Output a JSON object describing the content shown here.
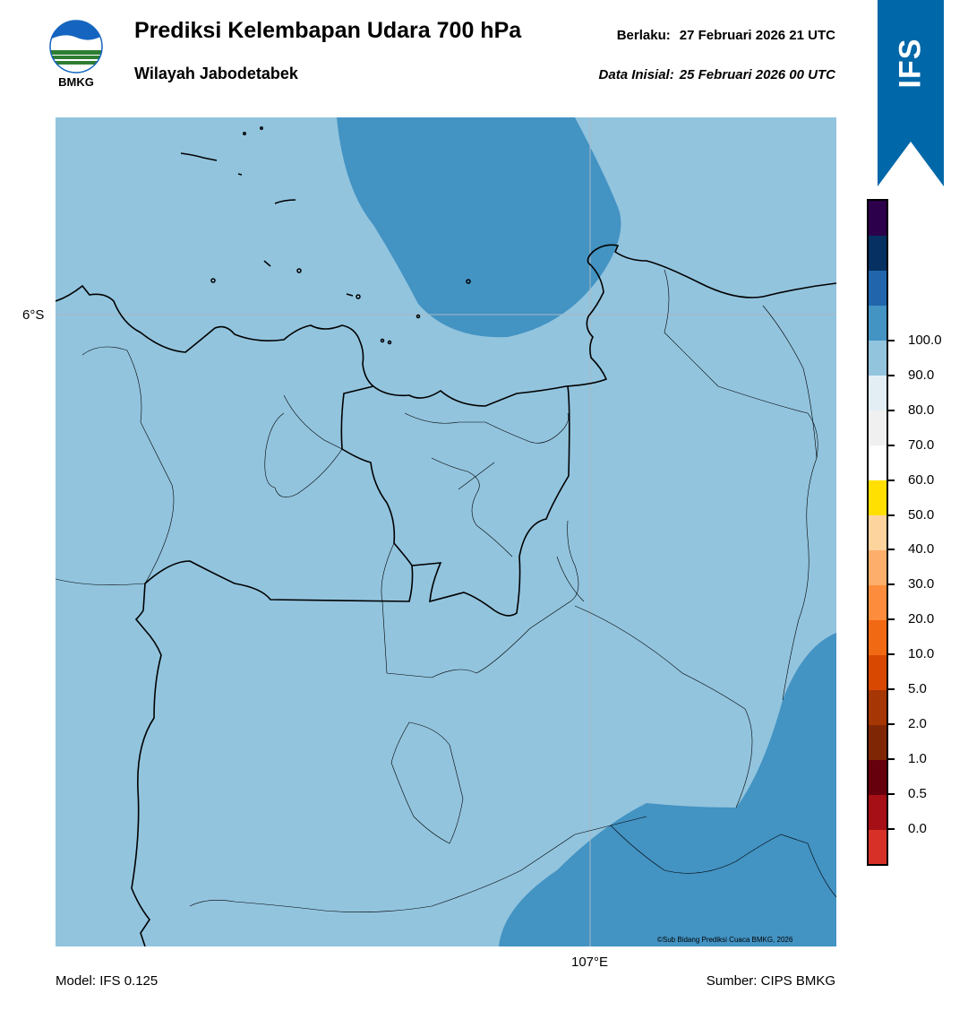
{
  "header": {
    "title": "Prediksi Kelembapan Udara 700 hPa",
    "subtitle": "Wilayah Jabodetabek",
    "valid_label": "Berlaku:",
    "valid_value": "27 Februari 2026 21 UTC",
    "init_label": "Data Inisial:",
    "init_value": "25 Februari 2026 00 UTC"
  },
  "logo": {
    "text": "BMKG",
    "icon": "bmkg-logo-icon"
  },
  "ribbon": {
    "text": "IFS",
    "color": "#0067a8"
  },
  "map": {
    "lat_label": "6°S",
    "lon_label": "107°E",
    "copyright": "©Sub Bidang Prediksi Cuaca BMKG, 2026",
    "base_fill_color": "#92c4de",
    "high_fill_color": "#4393c3"
  },
  "colorbar": {
    "segments": [
      "#d73027",
      "#a50f15",
      "#67000d",
      "#7f2704",
      "#a63603",
      "#d94801",
      "#f16913",
      "#fd8d3c",
      "#fdae6b",
      "#fdd49e",
      "#ffe000",
      "#ffffff",
      "#f0f0f0",
      "#e3eef4",
      "#92c4de",
      "#4393c3",
      "#2166ac",
      "#053061",
      "#2d004b"
    ],
    "labels": [
      "0.0",
      "0.5",
      "1.0",
      "2.0",
      "5.0",
      "10.0",
      "20.0",
      "30.0",
      "40.0",
      "50.0",
      "60.0",
      "70.0",
      "80.0",
      "90.0",
      "100.0"
    ]
  },
  "footer": {
    "model": "Model: IFS 0.125",
    "source": "Sumber: CIPS BMKG"
  }
}
